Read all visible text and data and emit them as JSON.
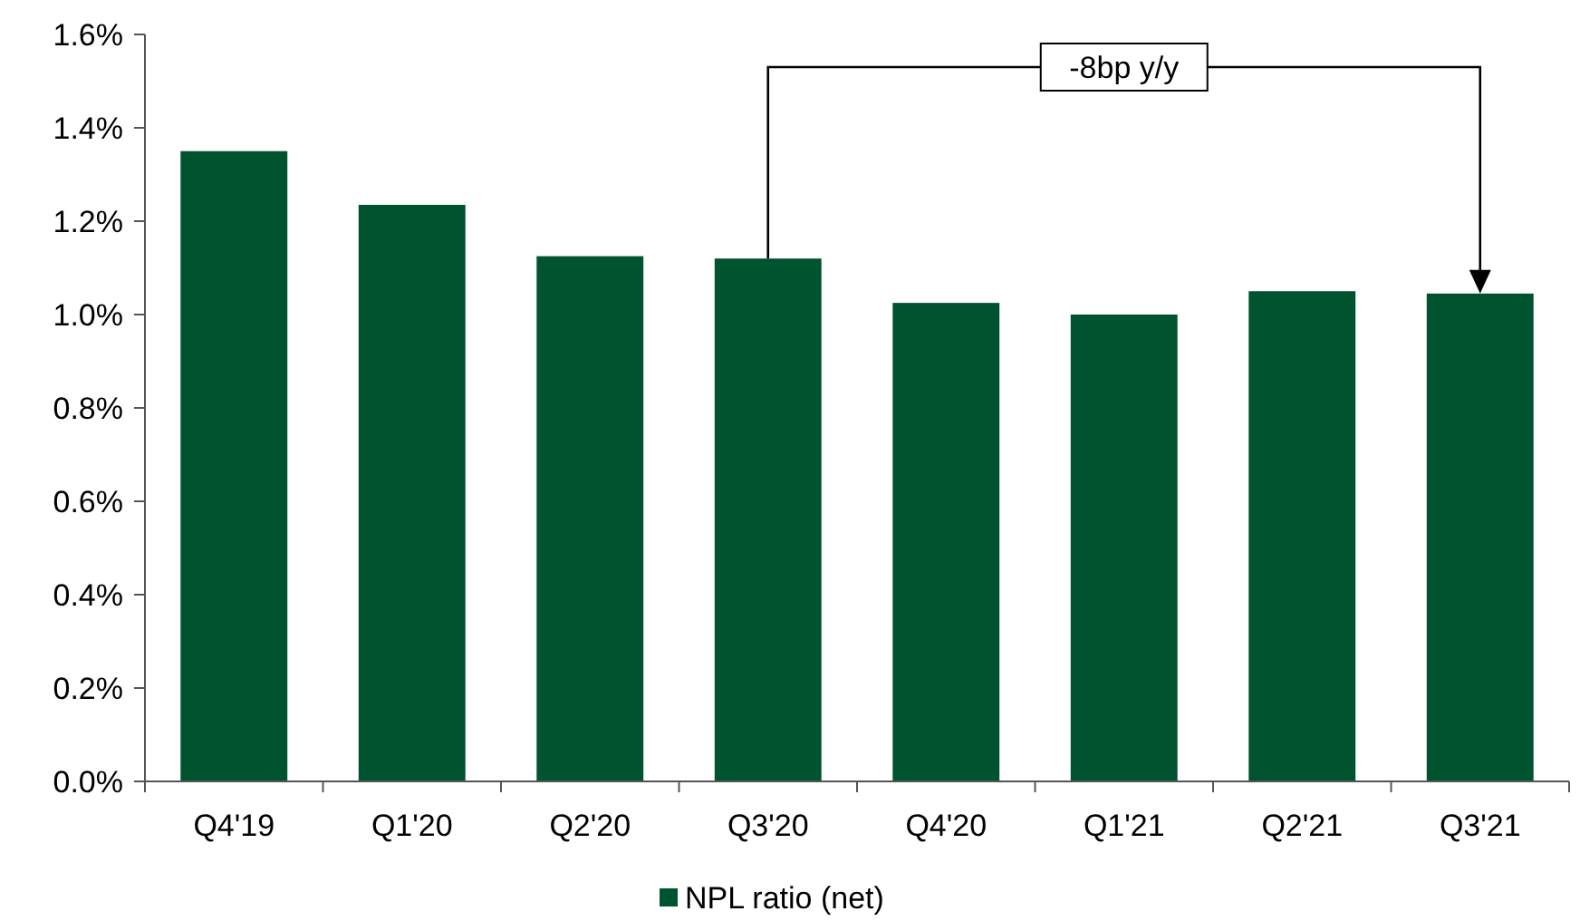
{
  "chart_data": {
    "type": "bar",
    "categories": [
      "Q4'19",
      "Q1'20",
      "Q2'20",
      "Q3'20",
      "Q4'20",
      "Q1'21",
      "Q2'21",
      "Q3'21"
    ],
    "series": [
      {
        "name": "NPL ratio (net)",
        "color": "#00532f",
        "values": [
          1.35,
          1.235,
          1.125,
          1.12,
          1.025,
          1.0,
          1.05,
          1.045
        ]
      }
    ],
    "ylim": [
      0,
      1.6
    ],
    "yticks": [
      {
        "value": 0,
        "label": "0.0%"
      },
      {
        "value": 0.2,
        "label": "0.2%"
      },
      {
        "value": 0.4,
        "label": "0.4%"
      },
      {
        "value": 0.6,
        "label": "0.6%"
      },
      {
        "value": 0.8,
        "label": "0.8%"
      },
      {
        "value": 1.0,
        "label": "1.0%"
      },
      {
        "value": 1.2,
        "label": "1.2%"
      },
      {
        "value": 1.4,
        "label": "1.4%"
      },
      {
        "value": 1.6,
        "label": "1.6%"
      }
    ],
    "annotations": [
      "-8bp y/y"
    ],
    "grid": false,
    "legend": "bottom"
  }
}
